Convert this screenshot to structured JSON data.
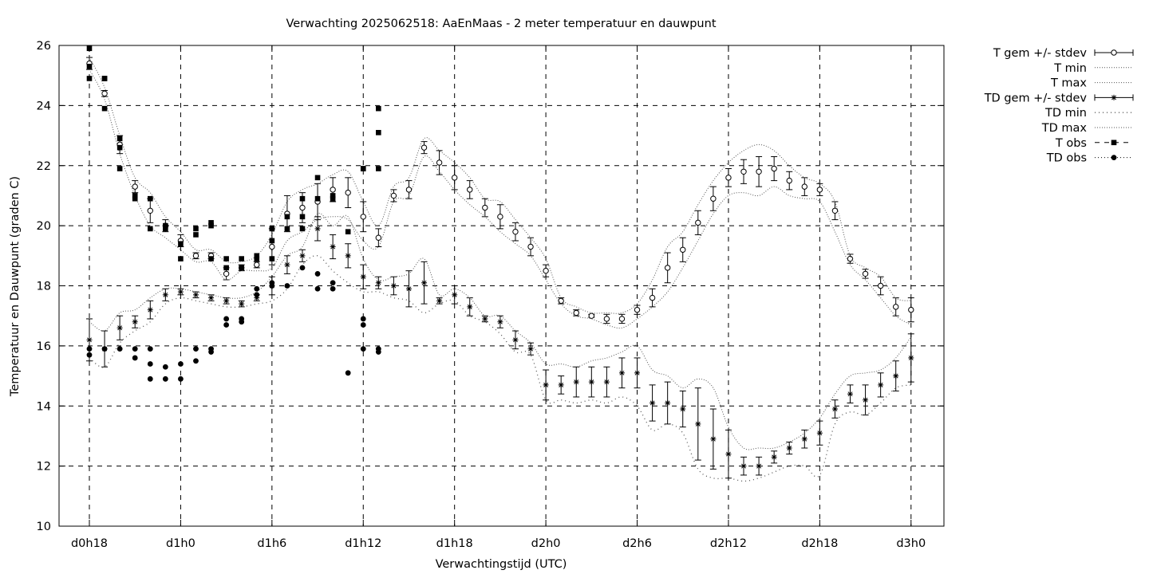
{
  "chart_data": {
    "type": "line",
    "title": "Verwachting 2025062518: AaEnMaas - 2 meter temperatuur en dauwpunt",
    "xlabel": "Verwachtingstijd (UTC)",
    "ylabel": "Temperatuur en Dauwpunt (graden C)",
    "xlim": [
      -1,
      57
    ],
    "ylim": [
      10,
      26
    ],
    "x_ticks": [
      {
        "x": 0,
        "label": "d0h18"
      },
      {
        "x": 6,
        "label": "d1h0"
      },
      {
        "x": 12,
        "label": "d1h6"
      },
      {
        "x": 18,
        "label": "d1h12"
      },
      {
        "x": 24,
        "label": "d1h18"
      },
      {
        "x": 30,
        "label": "d2h0"
      },
      {
        "x": 36,
        "label": "d2h6"
      },
      {
        "x": 42,
        "label": "d2h12"
      },
      {
        "x": 48,
        "label": "d2h18"
      },
      {
        "x": 54,
        "label": "d3h0"
      }
    ],
    "y_ticks": [
      10,
      12,
      14,
      16,
      18,
      20,
      22,
      24,
      26
    ],
    "grid": true,
    "legend_position": "outside-top-right",
    "forecast_x": [
      0,
      1,
      2,
      3,
      4,
      5,
      6,
      7,
      8,
      9,
      10,
      11,
      12,
      13,
      14,
      15,
      16,
      17,
      18,
      19,
      20,
      21,
      22,
      23,
      24,
      25,
      26,
      27,
      28,
      29,
      30,
      31,
      32,
      33,
      34,
      35,
      36,
      37,
      38,
      39,
      40,
      41,
      42,
      43,
      44,
      45,
      46,
      47,
      48,
      49,
      50,
      51,
      52,
      53,
      54
    ],
    "series": [
      {
        "name": "T gem +/- stdev",
        "style": "errorbars-circle",
        "values": [
          25.4,
          24.4,
          22.7,
          21.3,
          20.5,
          20.0,
          19.5,
          19.0,
          19.0,
          18.4,
          18.6,
          18.7,
          19.3,
          20.4,
          20.6,
          20.8,
          21.2,
          21.1,
          20.3,
          19.6,
          21.0,
          21.2,
          22.6,
          22.1,
          21.6,
          21.2,
          20.6,
          20.3,
          19.8,
          19.3,
          18.5,
          17.5,
          17.1,
          17.0,
          16.9,
          16.9,
          17.2,
          17.6,
          18.6,
          19.2,
          20.1,
          20.9,
          21.6,
          21.8,
          21.8,
          21.9,
          21.5,
          21.3,
          21.2,
          20.5,
          18.9,
          18.4,
          18.0,
          17.3,
          17.2
        ],
        "stdev": [
          0.2,
          0.1,
          0.3,
          0.2,
          0.4,
          0.2,
          0.2,
          0.1,
          0.1,
          0.2,
          0.1,
          0.1,
          0.6,
          0.6,
          0.5,
          0.6,
          0.4,
          0.5,
          0.5,
          0.3,
          0.2,
          0.3,
          0.2,
          0.4,
          0.4,
          0.3,
          0.3,
          0.4,
          0.3,
          0.3,
          0.2,
          0.1,
          0.1,
          0.05,
          0.15,
          0.15,
          0.15,
          0.3,
          0.5,
          0.4,
          0.4,
          0.4,
          0.3,
          0.4,
          0.5,
          0.4,
          0.3,
          0.3,
          0.2,
          0.3,
          0.15,
          0.15,
          0.3,
          0.3,
          0.4
        ]
      },
      {
        "name": "T min",
        "style": "dotted",
        "values": [
          25.2,
          24.2,
          22.4,
          21.0,
          20.0,
          19.6,
          19.2,
          18.8,
          18.8,
          18.2,
          18.5,
          18.5,
          18.6,
          19.5,
          19.8,
          20.2,
          20.3,
          20.2,
          19.5,
          19.3,
          20.8,
          21.0,
          22.3,
          21.8,
          21.2,
          20.7,
          20.3,
          19.8,
          19.4,
          19.0,
          18.2,
          17.4,
          17.0,
          16.9,
          16.7,
          16.6,
          16.9,
          17.3,
          17.8,
          18.6,
          19.5,
          20.4,
          21.0,
          21.1,
          21.0,
          21.3,
          21.0,
          20.9,
          20.8,
          19.8,
          18.7,
          18.2,
          17.6,
          17.0,
          16.7
        ]
      },
      {
        "name": "T max",
        "style": "dotted",
        "values": [
          25.6,
          24.6,
          23.0,
          21.6,
          21.1,
          20.3,
          19.8,
          19.2,
          19.2,
          18.8,
          18.8,
          19.0,
          19.7,
          20.8,
          21.2,
          21.4,
          21.7,
          21.8,
          20.8,
          20.0,
          21.3,
          21.6,
          22.9,
          22.5,
          22.1,
          21.6,
          20.9,
          20.8,
          20.2,
          19.6,
          18.9,
          17.6,
          17.3,
          17.1,
          17.1,
          17.1,
          17.4,
          18.2,
          19.3,
          19.8,
          20.7,
          21.5,
          22.1,
          22.5,
          22.7,
          22.5,
          22.0,
          21.6,
          21.4,
          20.8,
          19.0,
          18.6,
          18.3,
          17.6,
          17.5
        ]
      },
      {
        "name": "TD gem +/- stdev",
        "style": "errorbars-star",
        "values": [
          16.2,
          15.9,
          16.6,
          16.8,
          17.2,
          17.7,
          17.8,
          17.7,
          17.6,
          17.5,
          17.4,
          17.6,
          18.0,
          18.7,
          19.0,
          19.9,
          19.3,
          19.0,
          18.3,
          18.1,
          18.0,
          17.9,
          18.1,
          17.5,
          17.7,
          17.3,
          16.9,
          16.8,
          16.2,
          15.9,
          14.7,
          14.7,
          14.8,
          14.8,
          14.8,
          15.1,
          15.1,
          14.1,
          14.1,
          13.9,
          13.4,
          12.9,
          12.4,
          12.0,
          12.0,
          12.3,
          12.6,
          12.9,
          13.1,
          13.9,
          14.4,
          14.2,
          14.7,
          15.0,
          15.6
        ],
        "stdev": [
          0.7,
          0.6,
          0.4,
          0.2,
          0.3,
          0.2,
          0.1,
          0.1,
          0.1,
          0.1,
          0.1,
          0.1,
          0.3,
          0.3,
          0.2,
          0.4,
          0.4,
          0.4,
          0.4,
          0.2,
          0.3,
          0.6,
          0.7,
          0.1,
          0.3,
          0.3,
          0.1,
          0.2,
          0.3,
          0.2,
          0.5,
          0.3,
          0.5,
          0.5,
          0.5,
          0.5,
          0.5,
          0.6,
          0.7,
          0.6,
          1.2,
          1.0,
          0.8,
          0.3,
          0.3,
          0.2,
          0.2,
          0.3,
          0.4,
          0.3,
          0.3,
          0.5,
          0.4,
          0.5,
          0.8
        ]
      },
      {
        "name": "TD min",
        "style": "sparse-dots",
        "values": [
          15.6,
          15.3,
          16.1,
          16.5,
          16.8,
          17.4,
          17.6,
          17.5,
          17.4,
          17.3,
          17.3,
          17.4,
          17.5,
          17.9,
          18.7,
          19.0,
          18.5,
          18.1,
          17.8,
          17.8,
          17.6,
          17.5,
          17.1,
          17.4,
          17.5,
          17.0,
          16.8,
          16.4,
          15.8,
          15.7,
          14.2,
          14.2,
          14.1,
          14.2,
          14.1,
          14.3,
          14.0,
          13.2,
          13.4,
          13.1,
          11.9,
          11.6,
          11.6,
          11.5,
          11.6,
          11.8,
          12.0,
          12.0,
          11.7,
          13.4,
          13.8,
          13.7,
          14.1,
          14.6,
          14.7
        ]
      },
      {
        "name": "TD max",
        "style": "dotted",
        "values": [
          16.8,
          16.5,
          17.1,
          17.2,
          17.6,
          17.9,
          17.9,
          17.8,
          17.7,
          17.6,
          17.6,
          17.8,
          18.3,
          19.0,
          19.3,
          20.4,
          20.0,
          20.3,
          18.9,
          18.2,
          18.3,
          18.4,
          18.9,
          17.7,
          17.9,
          17.6,
          17.0,
          17.0,
          16.5,
          16.1,
          15.4,
          15.4,
          15.3,
          15.5,
          15.6,
          15.8,
          16.0,
          15.2,
          15.0,
          14.6,
          14.9,
          14.6,
          13.3,
          12.6,
          12.6,
          12.6,
          12.8,
          13.1,
          13.6,
          14.4,
          15.0,
          15.1,
          15.2,
          15.6,
          16.3
        ]
      },
      {
        "name": "T obs",
        "style": "squares",
        "points": [
          [
            0,
            25.9
          ],
          [
            0,
            25.3
          ],
          [
            0,
            24.9
          ],
          [
            1,
            24.9
          ],
          [
            1,
            24.9
          ],
          [
            1,
            23.9
          ],
          [
            2,
            22.9
          ],
          [
            2,
            22.6
          ],
          [
            2,
            21.9
          ],
          [
            3,
            21.0
          ],
          [
            3,
            20.9
          ],
          [
            4,
            20.9
          ],
          [
            4,
            19.9
          ],
          [
            5,
            19.9
          ],
          [
            5,
            20.0
          ],
          [
            6,
            19.4
          ],
          [
            6,
            18.9
          ],
          [
            7,
            19.9
          ],
          [
            7,
            19.7
          ],
          [
            8,
            20.0
          ],
          [
            8,
            20.1
          ],
          [
            8,
            18.9
          ],
          [
            9,
            18.9
          ],
          [
            9,
            18.6
          ],
          [
            10,
            18.6
          ],
          [
            10,
            18.9
          ],
          [
            11,
            18.9
          ],
          [
            11,
            19.0
          ],
          [
            12,
            19.5
          ],
          [
            12,
            18.9
          ],
          [
            12,
            19.9
          ],
          [
            13,
            19.9
          ],
          [
            13,
            20.3
          ],
          [
            14,
            20.9
          ],
          [
            14,
            20.3
          ],
          [
            14,
            19.9
          ],
          [
            15,
            21.6
          ],
          [
            15,
            20.9
          ],
          [
            16,
            20.9
          ],
          [
            16,
            21.0
          ],
          [
            17,
            19.8
          ],
          [
            18,
            21.9
          ],
          [
            18,
            21.9
          ],
          [
            19,
            23.9
          ],
          [
            19,
            23.1
          ],
          [
            19,
            21.9
          ]
        ]
      },
      {
        "name": "TD obs",
        "style": "circles-filled",
        "points": [
          [
            0,
            15.9
          ],
          [
            0,
            15.7
          ],
          [
            1,
            15.9
          ],
          [
            2,
            15.9
          ],
          [
            3,
            15.9
          ],
          [
            3,
            15.6
          ],
          [
            4,
            15.9
          ],
          [
            4,
            15.4
          ],
          [
            4,
            14.9
          ],
          [
            5,
            15.3
          ],
          [
            5,
            14.9
          ],
          [
            6,
            15.4
          ],
          [
            6,
            14.9
          ],
          [
            7,
            15.9
          ],
          [
            7,
            15.5
          ],
          [
            8,
            15.9
          ],
          [
            8,
            15.8
          ],
          [
            9,
            16.9
          ],
          [
            9,
            16.7
          ],
          [
            10,
            16.9
          ],
          [
            10,
            16.8
          ],
          [
            11,
            17.9
          ],
          [
            11,
            17.7
          ],
          [
            12,
            18.0
          ],
          [
            12,
            18.1
          ],
          [
            13,
            18.0
          ],
          [
            14,
            18.6
          ],
          [
            15,
            18.4
          ],
          [
            15,
            17.9
          ],
          [
            16,
            18.1
          ],
          [
            16,
            17.9
          ],
          [
            17,
            15.1
          ],
          [
            18,
            16.9
          ],
          [
            18,
            16.7
          ],
          [
            18,
            15.9
          ],
          [
            19,
            15.9
          ],
          [
            19,
            15.8
          ]
        ]
      }
    ]
  }
}
